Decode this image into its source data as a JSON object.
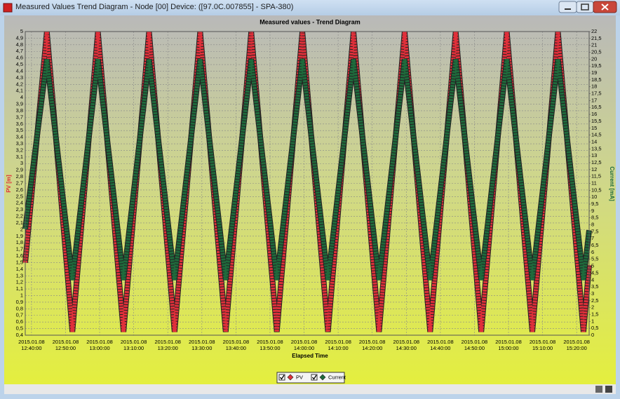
{
  "window_title": "Measured Values Trend Diagram - Node [00] Device: ([97.0C.007855] - SPA-380)",
  "chart_data": {
    "type": "line",
    "title": "Measured values - Trend Diagram",
    "x_label": "Elapsed Time",
    "y_label": "PV [m]",
    "y2_label": "Current [mA]",
    "x": [
      "2015.01.08 12:38:10",
      "2015.01.08 12:44:30",
      "2015.01.08 12:52:00",
      "2015.01.08 12:59:30",
      "2015.01.08 13:07:00",
      "2015.01.08 13:14:30",
      "2015.01.08 13:22:00",
      "2015.01.08 13:29:30",
      "2015.01.08 13:37:00",
      "2015.01.08 13:44:30",
      "2015.01.08 13:52:00",
      "2015.01.08 13:59:30",
      "2015.01.08 14:07:00",
      "2015.01.08 14:14:30",
      "2015.01.08 14:22:00",
      "2015.01.08 14:29:30",
      "2015.01.08 14:37:00",
      "2015.01.08 14:44:30",
      "2015.01.08 14:52:00",
      "2015.01.08 14:59:30",
      "2015.01.08 15:07:00",
      "2015.01.08 15:14:30",
      "2015.01.08 15:22:00",
      "2015.01.08 15:23:40"
    ],
    "series": [
      {
        "name": "PV",
        "color": "#e0303a",
        "values": [
          1.5,
          5,
          0.45,
          5,
          0.45,
          5,
          0.45,
          5,
          0.45,
          5,
          0.45,
          5,
          0.45,
          5,
          0.45,
          5,
          0.45,
          5,
          0.45,
          5,
          0.45,
          5,
          0.45,
          1.46
        ]
      },
      {
        "name": "Current",
        "color": "#1f6b3c",
        "axis": "y2",
        "values": [
          7.7,
          20,
          4,
          20,
          4,
          20,
          4,
          20,
          4,
          20,
          4,
          20,
          4,
          20,
          4,
          20,
          4,
          20,
          4,
          20,
          4,
          20,
          4,
          7.6
        ]
      }
    ],
    "xlim": [
      "2015.01.08 12:38:10",
      "2015.01.08 15:23:40"
    ],
    "xticks": [
      "2015.01.08 12:40:00",
      "2015.01.08 12:50:00",
      "2015.01.08 13:00:00",
      "2015.01.08 13:10:00",
      "2015.01.08 13:20:00",
      "2015.01.08 13:30:00",
      "2015.01.08 13:40:00",
      "2015.01.08 13:50:00",
      "2015.01.08 14:00:00",
      "2015.01.08 14:10:00",
      "2015.01.08 14:20:00",
      "2015.01.08 14:30:00",
      "2015.01.08 14:40:00",
      "2015.01.08 14:50:00",
      "2015.01.08 15:00:00",
      "2015.01.08 15:10:00",
      "2015.01.08 15:20:00"
    ],
    "ylim": [
      0.4,
      5
    ],
    "yticks": [
      {
        "value": 0.4,
        "label": "0,4"
      },
      {
        "value": 0.5,
        "label": "0,5"
      },
      {
        "value": 0.6,
        "label": "0,6"
      },
      {
        "value": 0.7,
        "label": "0,7"
      },
      {
        "value": 0.8,
        "label": "0,8"
      },
      {
        "value": 0.9,
        "label": "0,9"
      },
      1,
      {
        "value": 1.1,
        "label": "1,1"
      },
      {
        "value": 1.2,
        "label": "1,2"
      },
      {
        "value": 1.3,
        "label": "1,3"
      },
      {
        "value": 1.4,
        "label": "1,4"
      },
      {
        "value": 1.5,
        "label": "1,5"
      },
      {
        "value": 1.6,
        "label": "1,6"
      },
      {
        "value": 1.7,
        "label": "1,7"
      },
      {
        "value": 1.8,
        "label": "1,8"
      },
      {
        "value": 1.9,
        "label": "1,9"
      },
      2,
      {
        "value": 2.1,
        "label": "2,1"
      },
      {
        "value": 2.2,
        "label": "2,2"
      },
      {
        "value": 2.3,
        "label": "2,3"
      },
      {
        "value": 2.4,
        "label": "2,4"
      },
      {
        "value": 2.5,
        "label": "2,5"
      },
      {
        "value": 2.6,
        "label": "2,6"
      },
      {
        "value": 2.7,
        "label": "2,7"
      },
      {
        "value": 2.8,
        "label": "2,8"
      },
      {
        "value": 2.9,
        "label": "2,9"
      },
      3,
      {
        "value": 3.1,
        "label": "3,1"
      },
      {
        "value": 3.2,
        "label": "3,2"
      },
      {
        "value": 3.3,
        "label": "3,3"
      },
      {
        "value": 3.4,
        "label": "3,4"
      },
      {
        "value": 3.5,
        "label": "3,5"
      },
      {
        "value": 3.6,
        "label": "3,6"
      },
      {
        "value": 3.7,
        "label": "3,7"
      },
      {
        "value": 3.8,
        "label": "3,8"
      },
      {
        "value": 3.9,
        "label": "3,9"
      },
      4,
      {
        "value": 4.1,
        "label": "4,1"
      },
      {
        "value": 4.2,
        "label": "4,2"
      },
      {
        "value": 4.3,
        "label": "4,3"
      },
      {
        "value": 4.4,
        "label": "4,4"
      },
      {
        "value": 4.5,
        "label": "4,5"
      },
      {
        "value": 4.6,
        "label": "4,6"
      },
      {
        "value": 4.7,
        "label": "4,7"
      },
      {
        "value": 4.8,
        "label": "4,8"
      },
      {
        "value": 4.9,
        "label": "4,9"
      },
      5
    ],
    "y2lim": [
      0,
      22
    ],
    "y2ticks": [
      0,
      {
        "value": 0.5,
        "label": "0,5"
      },
      1,
      {
        "value": 1.5,
        "label": "1,5"
      },
      2,
      {
        "value": 2.5,
        "label": "2,5"
      },
      3,
      {
        "value": 3.5,
        "label": "3,5"
      },
      4,
      {
        "value": 4.5,
        "label": "4,5"
      },
      5,
      {
        "value": 5.5,
        "label": "5,5"
      },
      6,
      {
        "value": 6.5,
        "label": "6,5"
      },
      7,
      {
        "value": 7.5,
        "label": "7,5"
      },
      8,
      {
        "value": 8.5,
        "label": "8,5"
      },
      9,
      {
        "value": 9.5,
        "label": "9,5"
      },
      10,
      {
        "value": 10.5,
        "label": "10,5"
      },
      11,
      {
        "value": 11.5,
        "label": "11,5"
      },
      12,
      {
        "value": 12.5,
        "label": "12,5"
      },
      13,
      {
        "value": 13.5,
        "label": "13,5"
      },
      14,
      {
        "value": 14.5,
        "label": "14,5"
      },
      15,
      {
        "value": 15.5,
        "label": "15,5"
      },
      16,
      {
        "value": 16.5,
        "label": "16,5"
      },
      17,
      {
        "value": 17.5,
        "label": "17,5"
      },
      18,
      {
        "value": 18.5,
        "label": "18,5"
      },
      19,
      {
        "value": 19.5,
        "label": "19,5"
      },
      20,
      {
        "value": 20.5,
        "label": "20,5"
      },
      21,
      {
        "value": 21.5,
        "label": "21,5"
      },
      22
    ],
    "grid": true,
    "legend": "bottom"
  }
}
